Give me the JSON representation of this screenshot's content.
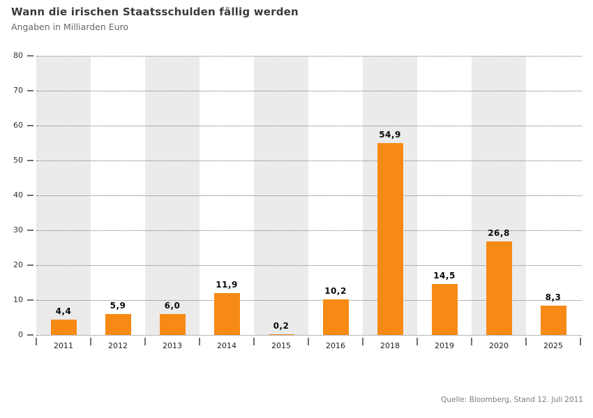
{
  "header": {
    "title": "Wann die irischen Staatsschulden fällig werden",
    "subtitle": "Angaben in Milliarden Euro"
  },
  "footer": {
    "source": "Quelle: Bloomberg, Stand 12. Juli 2011"
  },
  "chart_data": {
    "type": "bar",
    "title": "Wann die irischen Staatsschulden fällig werden",
    "subtitle": "Angaben in Milliarden Euro",
    "unit": "Milliarden Euro",
    "categories": [
      "2011",
      "2012",
      "2013",
      "2014",
      "2015",
      "2016",
      "2018",
      "2019",
      "2020",
      "2025"
    ],
    "values": [
      4.4,
      5.9,
      6.0,
      11.9,
      0.2,
      10.2,
      54.9,
      14.5,
      26.8,
      8.3
    ],
    "value_labels": [
      "4,4",
      "5,9",
      "6,0",
      "11,9",
      "0,2",
      "10,2",
      "54,9",
      "14,5",
      "26,8",
      "8,3"
    ],
    "ylim": [
      0,
      80
    ],
    "yticks": [
      0,
      10,
      20,
      30,
      40,
      50,
      60,
      70,
      80
    ],
    "xlabel": "",
    "ylabel": "",
    "grid": "horizontal-dotted",
    "legend": "none",
    "layout": "alternating vertical column bands, value labels above bars",
    "bar_color": "#F78A15",
    "band_color": "#EBEBEB",
    "source": "Quelle: Bloomberg, Stand 12. Juli 2011"
  }
}
